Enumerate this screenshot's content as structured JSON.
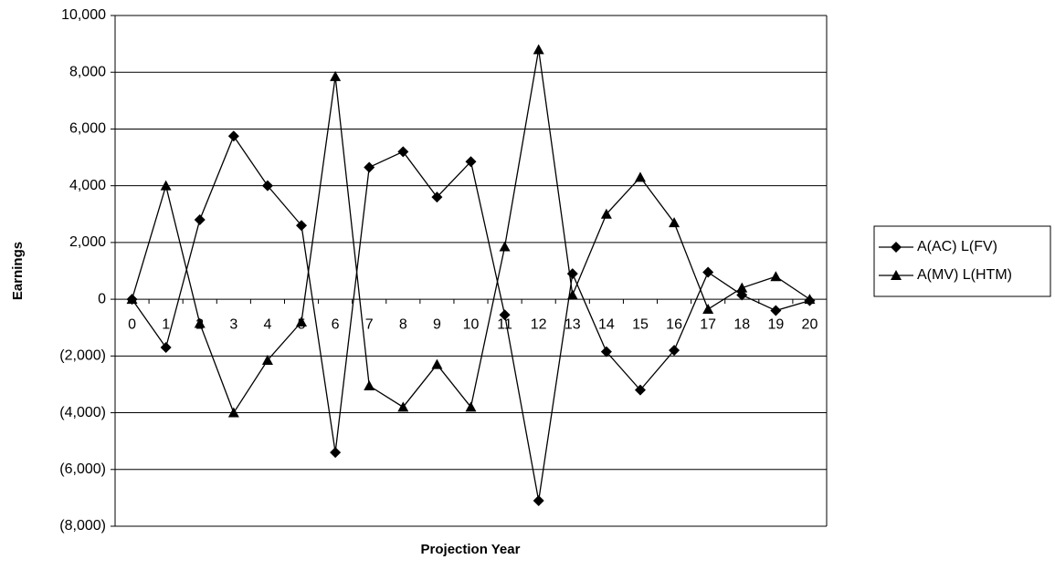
{
  "chart_data": {
    "type": "line",
    "x_label": "Projection Year",
    "y_label": "Earnings",
    "categories": [
      "0",
      "1",
      "2",
      "3",
      "4",
      "5",
      "6",
      "7",
      "8",
      "9",
      "10",
      "11",
      "12",
      "13",
      "14",
      "15",
      "16",
      "17",
      "18",
      "19",
      "20"
    ],
    "series": [
      {
        "name": "A(AC) L(FV)",
        "color": "#000000",
        "marker": "diamond",
        "values": [
          0,
          -1700,
          2800,
          5750,
          4000,
          2600,
          -5400,
          4650,
          5200,
          3600,
          4850,
          -550,
          -7100,
          900,
          -1850,
          -3200,
          -1800,
          950,
          150,
          -400,
          -50
        ]
      },
      {
        "name": "A(MV) L(HTM)",
        "color": "#000000",
        "marker": "triangle",
        "values": [
          0,
          4000,
          -850,
          -4000,
          -2150,
          -800,
          7850,
          -3050,
          -3800,
          -2300,
          -3800,
          1850,
          8800,
          150,
          3000,
          4300,
          2700,
          -350,
          400,
          800,
          0
        ]
      }
    ],
    "ylim": [
      -8000,
      10000
    ],
    "yticks": [
      {
        "value": -8000,
        "label": "(8,000)"
      },
      {
        "value": -6000,
        "label": "(6,000)"
      },
      {
        "value": -4000,
        "label": "(4,000)"
      },
      {
        "value": -2000,
        "label": "(2,000)"
      },
      0,
      {
        "value": 2000,
        "label": "2,000"
      },
      {
        "value": 4000,
        "label": "4,000"
      },
      {
        "value": 6000,
        "label": "6,000"
      },
      {
        "value": 8000,
        "label": "8,000"
      },
      {
        "value": 10000,
        "label": "10,000"
      }
    ],
    "grid": true,
    "legend": "right"
  }
}
